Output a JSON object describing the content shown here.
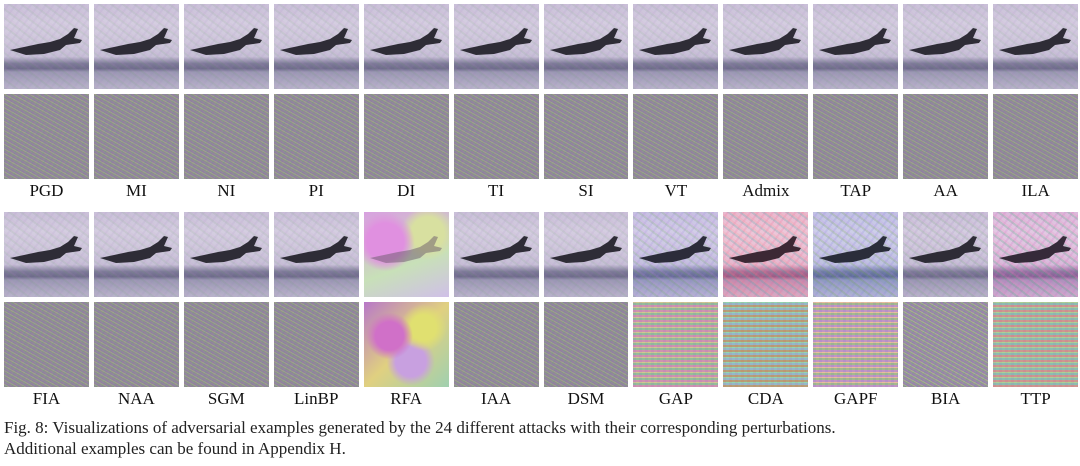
{
  "figure": {
    "row1_labels": [
      "PGD",
      "MI",
      "NI",
      "PI",
      "DI",
      "TI",
      "SI",
      "VT",
      "Admix",
      "TAP",
      "AA",
      "ILA"
    ],
    "row2_labels": [
      "FIA",
      "NAA",
      "SGM",
      "LinBP",
      "RFA",
      "IAA",
      "DSM",
      "GAP",
      "CDA",
      "GAPF",
      "BIA",
      "TTP"
    ],
    "caption_line1": "Fig. 8: Visualizations of adversarial examples generated by the 24 different attacks with their corresponding perturbations.",
    "caption_line2": "Additional examples can be found in Appendix H."
  }
}
